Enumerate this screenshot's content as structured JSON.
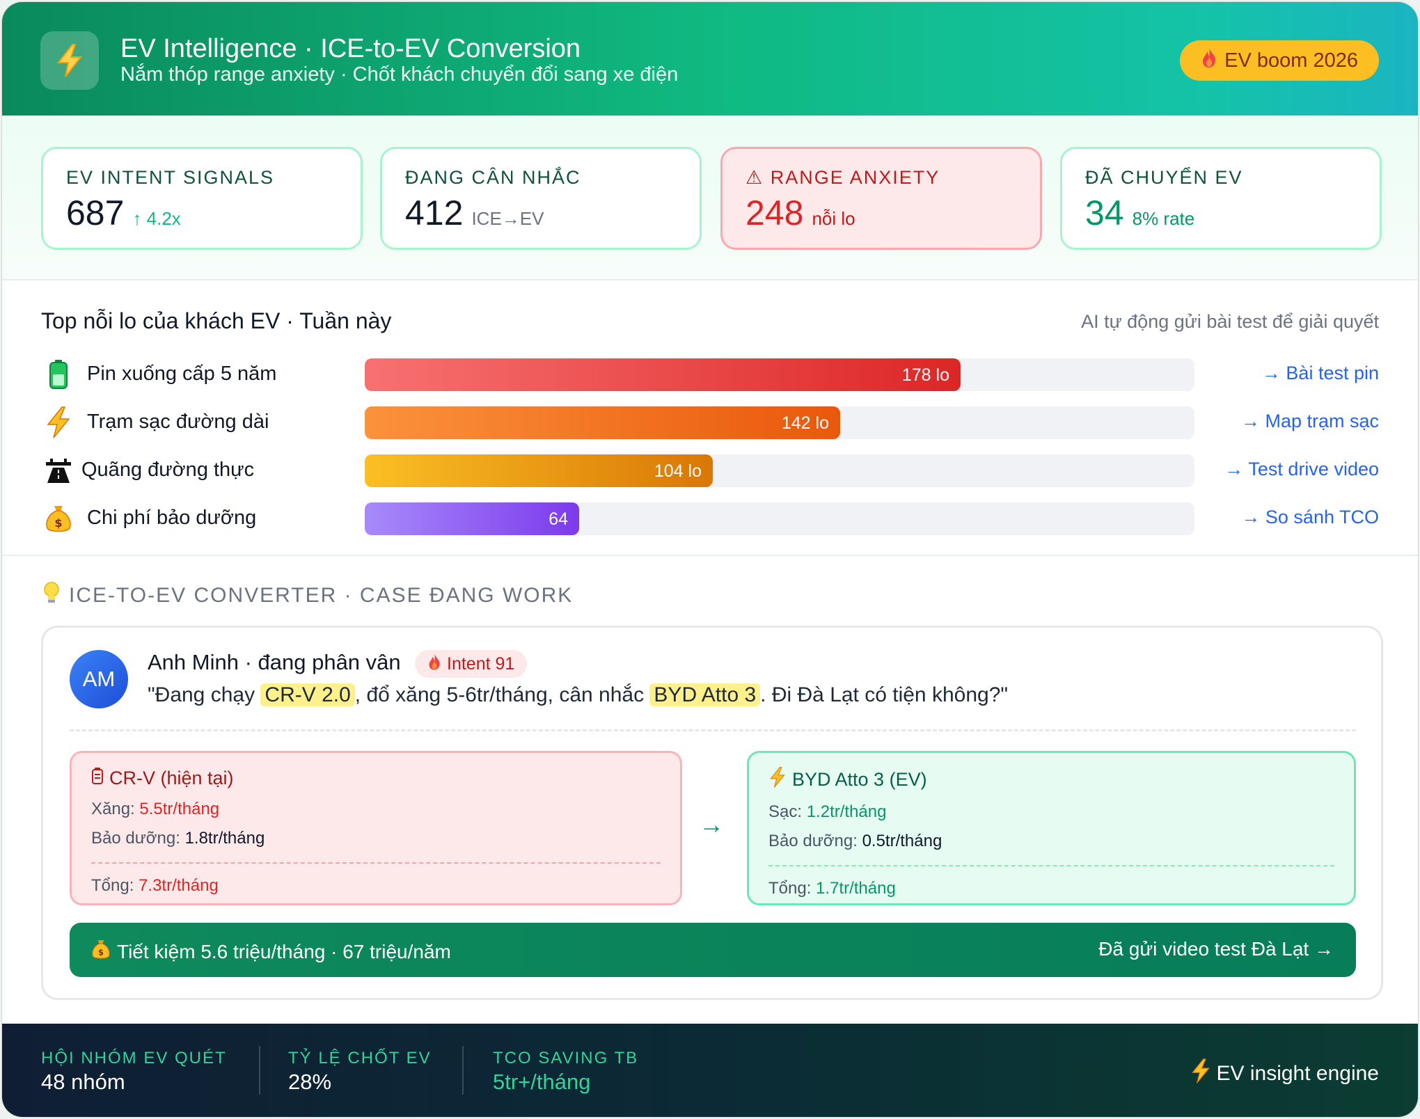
{
  "header": {
    "title": "EV Intelligence · ICE-to-EV Conversion",
    "subtitle": "Nắm thóp range anxiety · Chốt khách chuyển đổi sang xe điện",
    "badge": "EV boom 2026",
    "icon": "lightning-icon",
    "badge_icon": "fire-icon"
  },
  "kpis": [
    {
      "label": "EV INTENT SIGNALS",
      "value": "687",
      "sub": "↑ 4.2x",
      "sub_color": "#10b981"
    },
    {
      "label": "ĐANG CÂN NHẮC",
      "value": "412",
      "sub": "ICE→EV",
      "sub_color": "#6b7280"
    },
    {
      "label": "⚠ RANGE ANXIETY",
      "value": "248",
      "sub": "nỗi lo",
      "sub_color": "#b91c1c",
      "value_color": "#dc2626"
    },
    {
      "label": "ĐÃ CHUYỂN EV",
      "value": "34",
      "sub": "8% rate",
      "sub_color": "#059669",
      "value_color": "#059669"
    }
  ],
  "worries": {
    "title": "Top nỗi lo của khách EV · Tuần này",
    "note": "AI tự động gửi bài test để giải quyết",
    "items": [
      {
        "icon": "battery-icon",
        "label": "Pin xuống cấp 5 năm",
        "count": 178,
        "value_label": "178 lo",
        "action": "→ Bài test pin",
        "c1": "#f87171",
        "c2": "#dc2626"
      },
      {
        "icon": "lightning-icon",
        "label": "Trạm sạc đường dài",
        "count": 142,
        "value_label": "142 lo",
        "action": "→ Map trạm sạc",
        "c1": "#fb923c",
        "c2": "#ea580c"
      },
      {
        "icon": "highway-icon",
        "label": "Quãng đường thực",
        "count": 104,
        "value_label": "104 lo",
        "action": "→ Test drive video",
        "c1": "#fbbf24",
        "c2": "#d97706"
      },
      {
        "icon": "money-bag-icon",
        "label": "Chi phí bảo dưỡng",
        "count": 64,
        "value_label": "64",
        "action": "→ So sánh TCO",
        "c1": "#a78bfa",
        "c2": "#7c3aed"
      }
    ],
    "scale_max": 248
  },
  "converter": {
    "title": "ICE-TO-EV CONVERTER · CASE ĐANG WORK",
    "title_icon": "lightbulb-icon",
    "customer": {
      "initials": "AM",
      "name": "Anh Minh · đang phân vân",
      "intent": "Intent 91",
      "quote_1": "\"Đang chạy ",
      "quote_hl_1": "CR-V 2.0",
      "quote_2": ", đổ xăng 5-6tr/tháng, cân nhắc ",
      "quote_hl_2": "BYD Atto 3",
      "quote_3": ". Đi Đà Lạt có tiện không?\""
    },
    "ice": {
      "icon": "fuel-icon",
      "title": "CR-V (hiện tại)",
      "fuel_label": "Xăng:",
      "fuel_value": "5.5tr/tháng",
      "maint_label": "Bảo dưỡng:",
      "maint_value": "1.8tr/tháng",
      "total_label": "Tổng:",
      "total_value": "7.3tr/tháng"
    },
    "ev": {
      "icon": "lightning-icon",
      "title": "BYD Atto 3 (EV)",
      "charge_label": "Sạc:",
      "charge_value": "1.2tr/tháng",
      "maint_label": "Bảo dưỡng:",
      "maint_value": "0.5tr/tháng",
      "total_label": "Tổng:",
      "total_value": "1.7tr/tháng"
    },
    "arrow": "→",
    "saving": "Tiết kiệm 5.6 triệu/tháng · 67 triệu/năm",
    "saving_icon": "money-bag-icon",
    "action": "Đã gửi video test Đà Lạt →"
  },
  "footer": {
    "stats": [
      {
        "label": "HỘI NHÓM EV QUÉT",
        "value": "48 nhóm"
      },
      {
        "label": "TỶ LỆ CHỐT EV",
        "value": "28%"
      },
      {
        "label": "TCO SAVING TB",
        "value": "5tr+/tháng"
      }
    ],
    "engine": "EV insight engine"
  }
}
